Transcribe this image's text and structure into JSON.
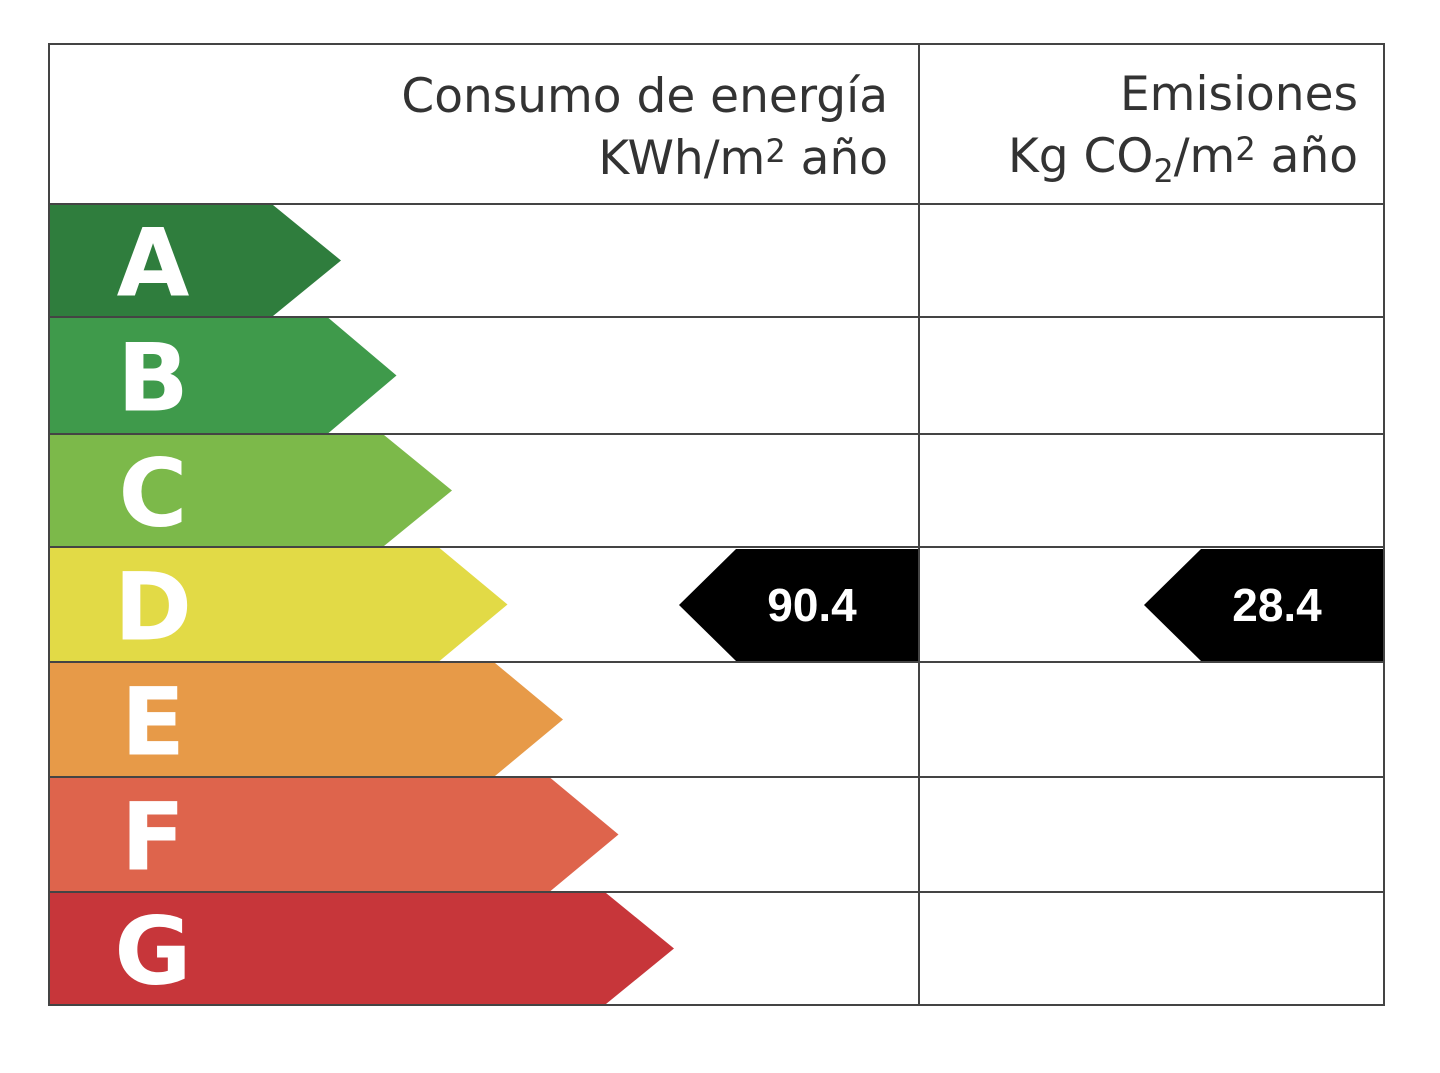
{
  "chart_data": {
    "type": "energy-rating-label",
    "columns": [
      {
        "title": "Consumo de energía",
        "unit_prefix": "KWh/m",
        "unit_sup": "2",
        "unit_suffix": " año"
      },
      {
        "title": "Emisiones",
        "unit_prefix_1": "Kg CO",
        "unit_sub": "2",
        "unit_prefix_2": "/m",
        "unit_sup": "2",
        "unit_suffix": " año"
      }
    ],
    "classes": [
      {
        "letter": "A",
        "color": "#2f7d3d"
      },
      {
        "letter": "B",
        "color": "#3f9a4b"
      },
      {
        "letter": "C",
        "color": "#7cb94a"
      },
      {
        "letter": "D",
        "color": "#e2da46"
      },
      {
        "letter": "E",
        "color": "#e79a48"
      },
      {
        "letter": "F",
        "color": "#de644c"
      },
      {
        "letter": "G",
        "color": "#c7363a"
      }
    ],
    "ratings": [
      {
        "column": 0,
        "class": "D",
        "value": "90.4"
      },
      {
        "column": 1,
        "class": "D",
        "value": "28.4"
      }
    ]
  }
}
